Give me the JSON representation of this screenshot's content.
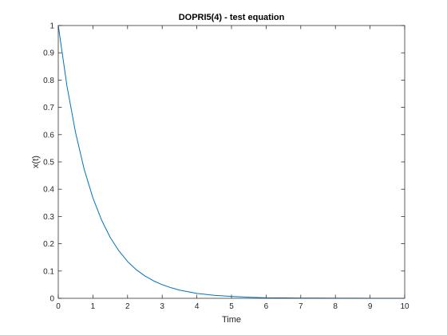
{
  "chart_data": {
    "type": "line",
    "title": "DOPRI5(4) - test equation",
    "xlabel": "Time",
    "ylabel": "x(t)",
    "xlim": [
      0,
      10
    ],
    "ylim": [
      0,
      1
    ],
    "xticks": [
      0,
      1,
      2,
      3,
      4,
      5,
      6,
      7,
      8,
      9,
      10
    ],
    "xtick_labels": [
      "0",
      "1",
      "2",
      "3",
      "4",
      "5",
      "6",
      "7",
      "8",
      "9",
      "10"
    ],
    "yticks": [
      0,
      0.1,
      0.2,
      0.3,
      0.4,
      0.5,
      0.6,
      0.7,
      0.8,
      0.9,
      1
    ],
    "ytick_labels": [
      "0",
      "0.1",
      "0.2",
      "0.3",
      "0.4",
      "0.5",
      "0.6",
      "0.7",
      "0.8",
      "0.9",
      "1"
    ],
    "grid": false,
    "box": true,
    "series": [
      {
        "color": "#0072BD",
        "x": [
          0,
          0.25,
          0.5,
          0.75,
          1,
          1.25,
          1.5,
          1.75,
          2,
          2.25,
          2.5,
          2.75,
          3,
          3.25,
          3.5,
          3.75,
          4,
          4.5,
          5,
          5.5,
          6,
          6.5,
          7,
          7.5,
          8,
          8.5,
          9,
          9.5,
          10
        ],
        "y": [
          1,
          0.779,
          0.607,
          0.472,
          0.368,
          0.287,
          0.223,
          0.174,
          0.135,
          0.105,
          0.082,
          0.064,
          0.05,
          0.039,
          0.03,
          0.024,
          0.018,
          0.011,
          0.007,
          0.004,
          0.002,
          0.0015,
          0.0009,
          0.0006,
          0.0003,
          0.0002,
          0.0001,
          0.0001,
          0
        ]
      }
    ]
  }
}
